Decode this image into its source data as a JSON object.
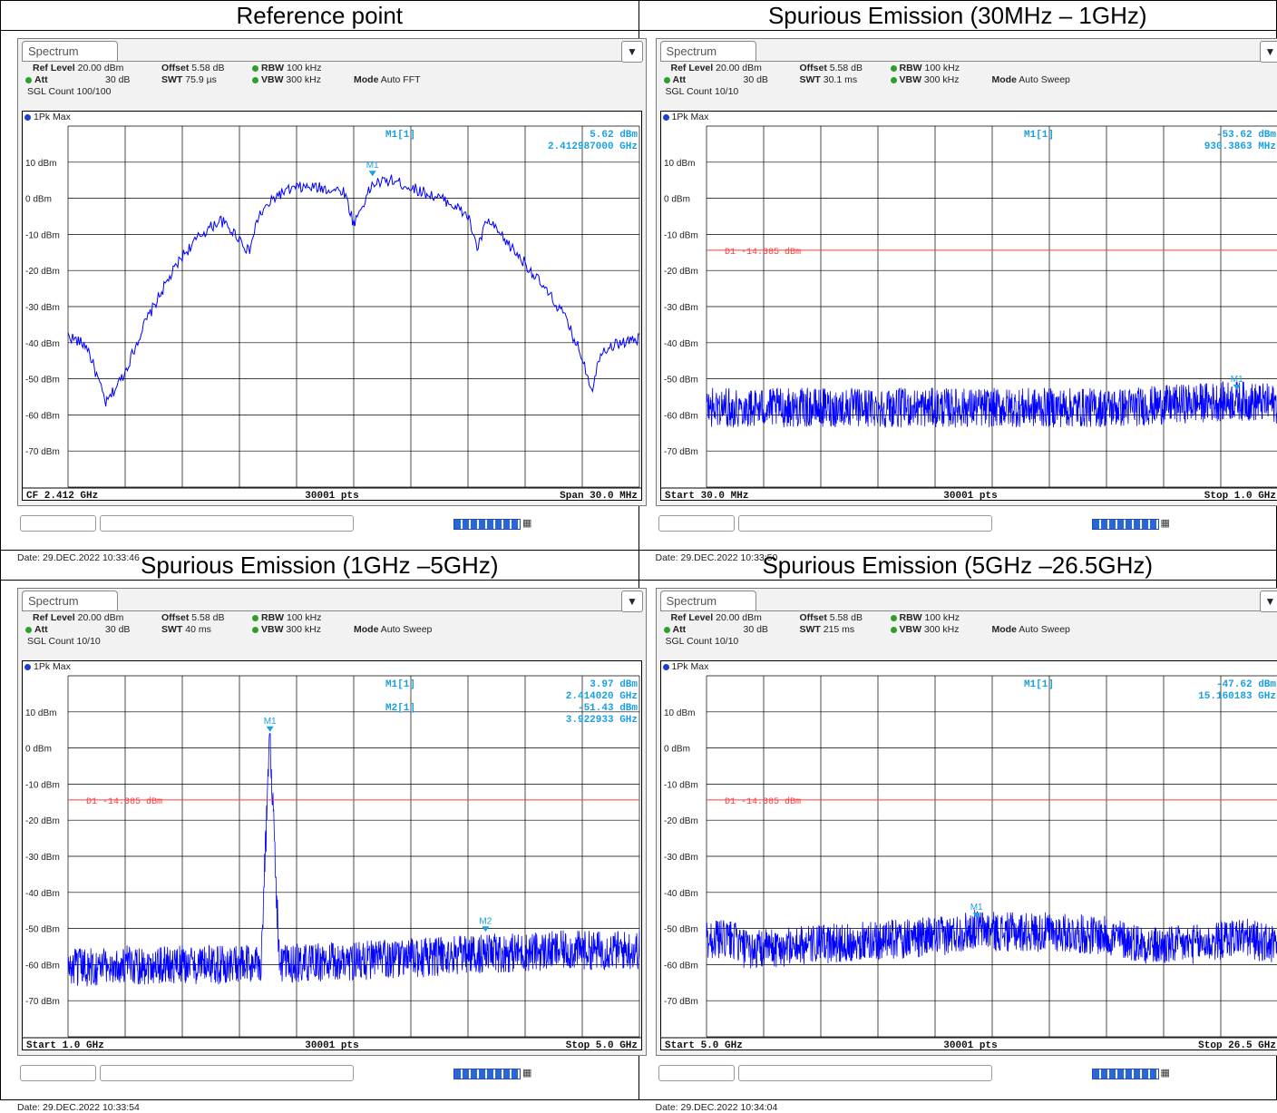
{
  "headers": [
    "Reference point",
    "Spurious Emission (30MHz – 1GHz)",
    "Spurious Emission (1GHz –5GHz)",
    "Spurious Emission (5GHz –26.5GHz)"
  ],
  "common": {
    "tab_label": "Spectrum",
    "config_icon": "settings-icon",
    "ref_level_label": "Ref Level",
    "ref_level": "20.00 dBm",
    "offset_label": "Offset",
    "offset": "5.58 dB",
    "rbw_label": "RBW",
    "rbw": "100 kHz",
    "att_label": "Att",
    "att": "30 dB",
    "swt_label": "SWT",
    "vbw_label": "VBW",
    "vbw": "300 kHz",
    "mode_label": "Mode",
    "trace_label": "1Pk Max",
    "points": "30001 pts",
    "y_ticks": [
      "10 dBm",
      "0 dBm",
      "-10 dBm",
      "-20 dBm",
      "-30 dBm",
      "-40 dBm",
      "-50 dBm",
      "-60 dBm",
      "-70 dBm"
    ],
    "colors": {
      "trace": "#0000ff",
      "marker": "#1aa0e0",
      "limit": "#ff3b3b",
      "grid": "#000000"
    }
  },
  "panels": [
    {
      "swt": "75.9 µs",
      "mode": "Auto FFT",
      "sgl_count": "SGL Count 100/100",
      "x_left": "CF 2.412 GHz",
      "x_right": "Span 30.0 MHz",
      "date": "Date: 29.DEC.2022  10:33:46",
      "markers_text": [
        {
          "name": "M1[1]",
          "value": "5.62 dBm",
          "freq": "2.412987000 GHz"
        }
      ],
      "limit_line": null
    },
    {
      "swt": "30.1 ms",
      "mode": "Auto Sweep",
      "sgl_count": "SGL Count 10/10",
      "x_left": "Start 30.0 MHz",
      "x_right": "Stop 1.0 GHz",
      "date": "Date: 29.DEC.2022  10:33:50",
      "markers_text": [
        {
          "name": "M1[1]",
          "value": "-53.62 dBm",
          "freq": "930.3863 MHz"
        }
      ],
      "limit_line": "D1  -14.385 dBm"
    },
    {
      "swt": "40 ms",
      "mode": "Auto Sweep",
      "sgl_count": "SGL Count 10/10",
      "x_left": "Start 1.0 GHz",
      "x_right": "Stop 5.0 GHz",
      "date": "Date: 29.DEC.2022  10:33:54",
      "markers_text": [
        {
          "name": "M1[1]",
          "value": "3.97 dBm",
          "freq": "2.414020 GHz"
        },
        {
          "name": "M2[1]",
          "value": "-51.43 dBm",
          "freq": "3.922933 GHz"
        }
      ],
      "limit_line": "D1  -14.385 dBm"
    },
    {
      "swt": "215 ms",
      "mode": "Auto Sweep",
      "sgl_count": "SGL Count 10/10",
      "x_left": "Start 5.0 GHz",
      "x_right": "Stop 26.5 GHz",
      "date": "Date: 29.DEC.2022  10:34:04",
      "markers_text": [
        {
          "name": "M1[1]",
          "value": "-47.62 dBm",
          "freq": "15.160183 GHz"
        }
      ],
      "limit_line": "D1  -14.385 dBm"
    }
  ],
  "chart_data": [
    {
      "type": "line",
      "title": "Reference point",
      "xunit": "GHz",
      "xlim": [
        2.397,
        2.427
      ],
      "ylim": [
        -80,
        20
      ],
      "grid": true,
      "series": [
        {
          "x": [
            2.397,
            2.398,
            2.399,
            2.4,
            2.401,
            2.402,
            2.403,
            2.404,
            2.405,
            2.406,
            2.4065,
            2.407,
            2.408,
            2.409,
            2.41,
            2.4115,
            2.412,
            2.413,
            2.414,
            2.415,
            2.416,
            2.417,
            2.418,
            2.4185,
            2.419,
            2.42,
            2.421,
            2.422,
            2.423,
            2.424,
            2.4245,
            2.425,
            2.426,
            2.427
          ],
          "y": [
            -38,
            -41,
            -57,
            -48,
            -35,
            -25,
            -16,
            -10,
            -6,
            -11,
            -15,
            -5,
            1,
            3,
            3,
            2,
            -7,
            4,
            5,
            3,
            1,
            -1,
            -5,
            -14,
            -6,
            -12,
            -18,
            -25,
            -32,
            -44,
            -53,
            -42,
            -40,
            -39
          ]
        }
      ],
      "markers": [
        {
          "name": "M1",
          "x": 2.412987,
          "y": 5.62
        }
      ],
      "limit": null
    },
    {
      "type": "line",
      "title": "Spurious Emission (30MHz – 1GHz)",
      "xunit": "MHz",
      "xlim": [
        30,
        1000
      ],
      "ylim": [
        -80,
        20
      ],
      "grid": true,
      "series": [
        {
          "x": [
            30,
            130,
            230,
            330,
            430,
            530,
            630,
            730,
            830,
            930,
            1000
          ],
          "y": [
            -58,
            -58,
            -58,
            -58,
            -58,
            -58,
            -58,
            -58,
            -57,
            -56,
            -57
          ]
        }
      ],
      "markers": [
        {
          "name": "M1",
          "x": 930.3863,
          "y": -53.62
        }
      ],
      "limit": -14.385
    },
    {
      "type": "line",
      "title": "Spurious Emission (1GHz –5GHz)",
      "xunit": "GHz",
      "xlim": [
        1.0,
        5.0
      ],
      "ylim": [
        -80,
        20
      ],
      "grid": true,
      "series": [
        {
          "x": [
            1.0,
            1.5,
            2.0,
            2.35,
            2.414,
            2.48,
            3.0,
            3.5,
            3.92,
            4.5,
            5.0
          ],
          "y": [
            -61,
            -60,
            -60,
            -60,
            3.97,
            -60,
            -59,
            -58,
            -57,
            -56,
            -56
          ]
        }
      ],
      "markers": [
        {
          "name": "M1",
          "x": 2.41402,
          "y": 3.97
        },
        {
          "name": "M2",
          "x": 3.922933,
          "y": -51.43
        }
      ],
      "limit": -14.385
    },
    {
      "type": "line",
      "title": "Spurious Emission (5GHz –26.5GHz)",
      "xunit": "GHz",
      "xlim": [
        5.0,
        26.5
      ],
      "ylim": [
        -80,
        20
      ],
      "grid": true,
      "series": [
        {
          "x": [
            5.0,
            6.0,
            6.5,
            8.0,
            10.0,
            12.0,
            14.0,
            15.16,
            16.0,
            18.0,
            20.0,
            22.0,
            24.0,
            25.0,
            26.5
          ],
          "y": [
            -53,
            -53,
            -56,
            -55,
            -54,
            -53,
            -52,
            -50,
            -51,
            -51,
            -52,
            -55,
            -54,
            -52,
            -55
          ]
        }
      ],
      "markers": [
        {
          "name": "M1",
          "x": 15.160183,
          "y": -47.62
        }
      ],
      "limit": -14.385
    }
  ]
}
